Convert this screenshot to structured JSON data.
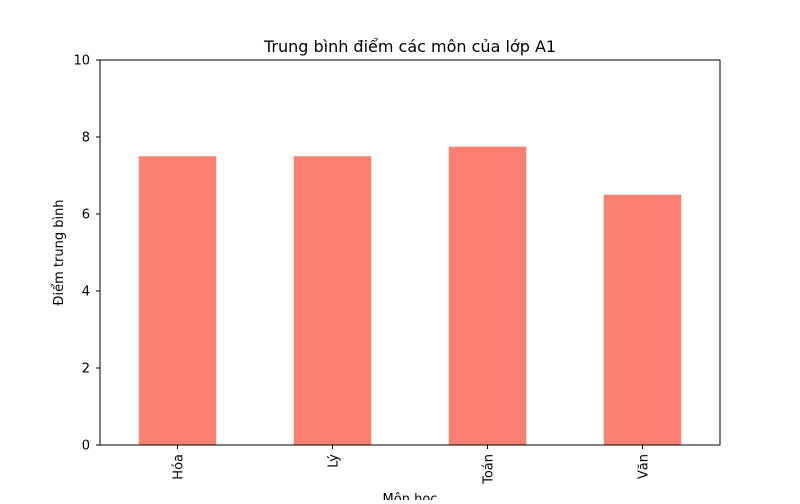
{
  "chart_data": {
    "type": "bar",
    "title": "Trung bình điểm các môn của lớp A1",
    "xlabel": "Môn học",
    "ylabel": "Điểm trung bình",
    "categories": [
      "Hóa",
      "Lý",
      "Toán",
      "Văn"
    ],
    "values": [
      7.5,
      7.5,
      7.75,
      6.5
    ],
    "ylim": [
      0,
      10
    ],
    "yticks": [
      "0",
      "2",
      "4",
      "6",
      "8",
      "10"
    ],
    "bar_color": "#FA8072",
    "grid": false,
    "legend": "none"
  }
}
